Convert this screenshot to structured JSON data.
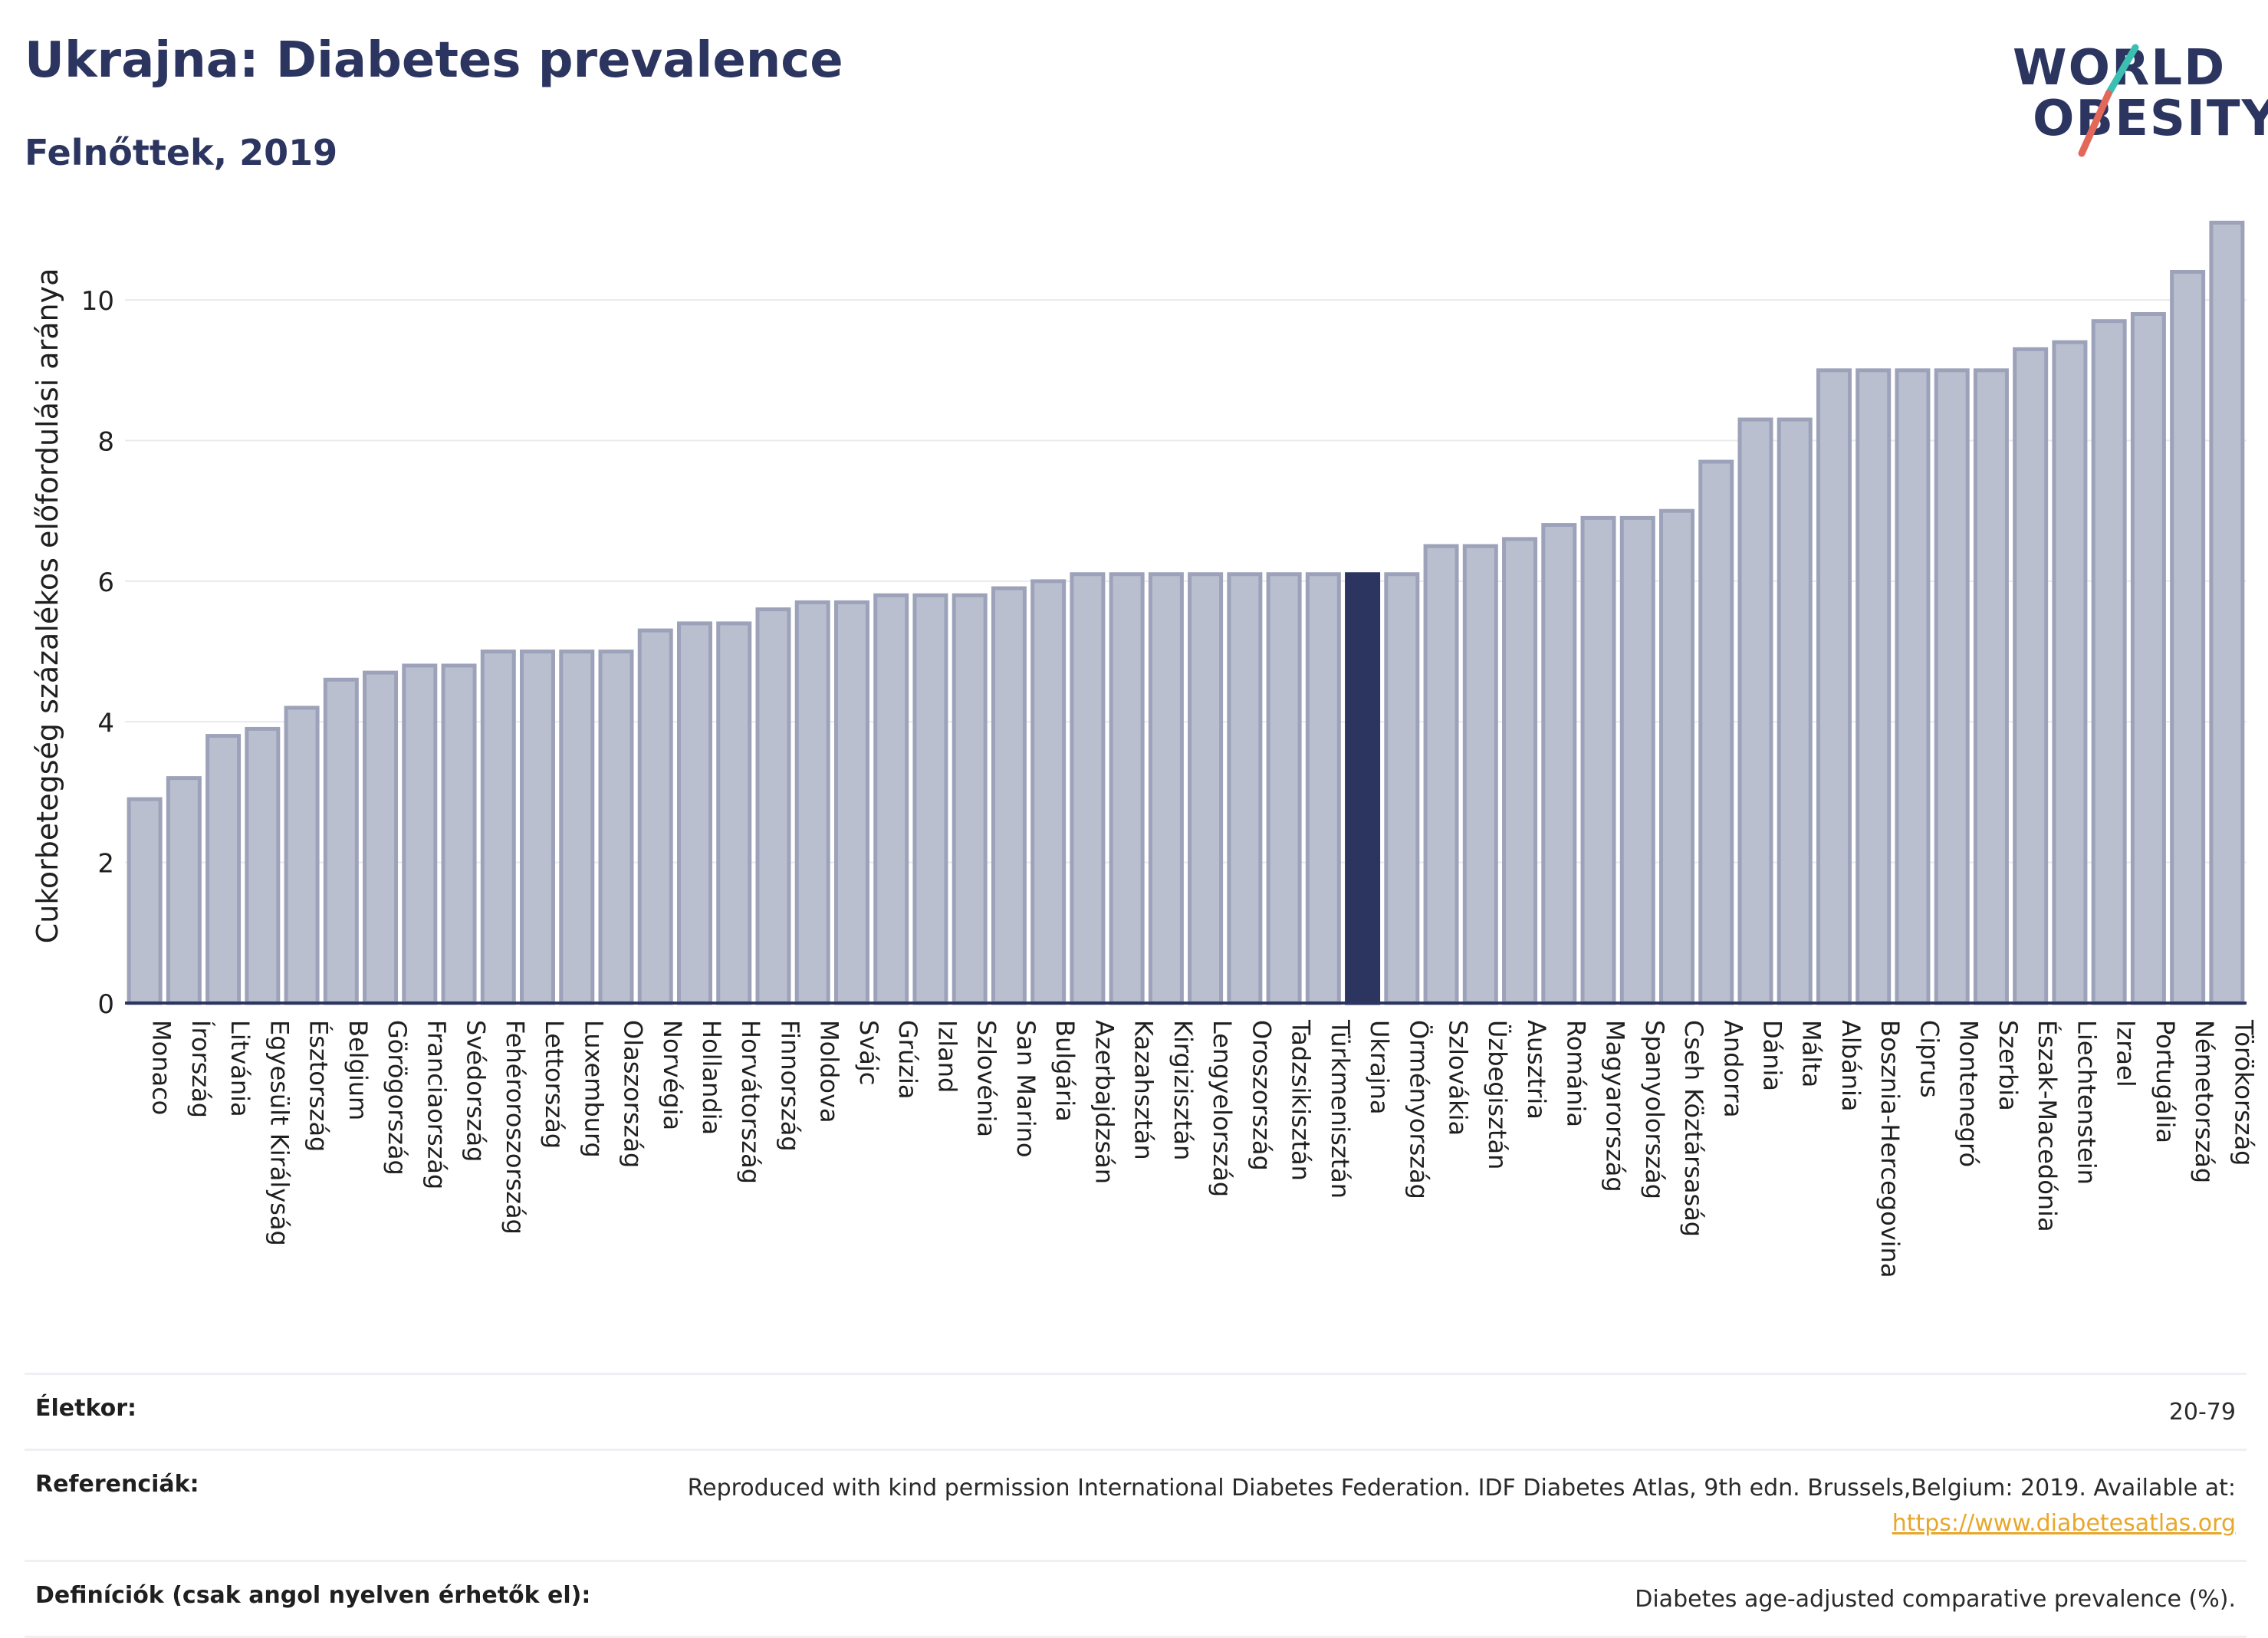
{
  "header": {
    "title": "Ukrajna: Diabetes prevalence",
    "subtitle": "Felnőttek, 2019",
    "logo": {
      "line1": "WORLD",
      "line2": "OBESITY"
    }
  },
  "colors": {
    "bar_default": "#babfcf",
    "bar_border": "#9ca2b9",
    "bar_highlight": "#2b3560",
    "title": "#2b3560",
    "logo_teal": "#3cbfb3",
    "logo_coral": "#e4685a",
    "link": "#e8a72a"
  },
  "chart_data": {
    "type": "bar",
    "title": "Ukrajna: Diabetes prevalence",
    "subtitle": "Felnőttek, 2019",
    "xlabel": "",
    "ylabel": "Cukorbetegség százalékos előfordulási aránya",
    "ylim": [
      0,
      11.3
    ],
    "yticks": [
      0,
      2,
      4,
      6,
      8,
      10
    ],
    "grid": true,
    "highlight": "Ukrajna",
    "categories": [
      "Monaco",
      "Írország",
      "Litvánia",
      "Egyesült Királyság",
      "Észtország",
      "Belgium",
      "Görögország",
      "Franciaország",
      "Svédország",
      "Fehéroroszország",
      "Lettország",
      "Luxemburg",
      "Olaszország",
      "Norvégia",
      "Hollandia",
      "Horvátország",
      "Finnország",
      "Moldova",
      "Svájc",
      "Grúzia",
      "Izland",
      "Szlovénia",
      "San Marino",
      "Bulgária",
      "Azerbajdzsán",
      "Kazahsztán",
      "Kirgizisztán",
      "Lengyelország",
      "Oroszország",
      "Tadzsikisztán",
      "Türkmenisztán",
      "Ukrajna",
      "Örményország",
      "Szlovákia",
      "Üzbegisztán",
      "Ausztria",
      "Románia",
      "Magyarország",
      "Spanyolország",
      "Cseh Köztársaság",
      "Andorra",
      "Dánia",
      "Málta",
      "Albánia",
      "Bosznia-Hercegovina",
      "Ciprus",
      "Montenegró",
      "Szerbia",
      "Észak-Macedónia",
      "Liechtenstein",
      "Izrael",
      "Portugália",
      "Németország",
      "Törökország"
    ],
    "values": [
      2.9,
      3.2,
      3.8,
      3.9,
      4.2,
      4.6,
      4.7,
      4.8,
      4.8,
      5.0,
      5.0,
      5.0,
      5.0,
      5.3,
      5.4,
      5.4,
      5.6,
      5.7,
      5.7,
      5.8,
      5.8,
      5.8,
      5.9,
      6.0,
      6.1,
      6.1,
      6.1,
      6.1,
      6.1,
      6.1,
      6.1,
      6.1,
      6.1,
      6.5,
      6.5,
      6.6,
      6.8,
      6.9,
      6.9,
      7.0,
      7.7,
      8.3,
      8.3,
      9.0,
      9.0,
      9.0,
      9.0,
      9.0,
      9.3,
      9.4,
      9.7,
      9.8,
      10.4,
      11.1
    ]
  },
  "footer": {
    "age_label": "Életkor:",
    "age_value": "20-79",
    "ref_label": "Referenciák:",
    "ref_text": "Reproduced with kind permission International Diabetes Federation. IDF Diabetes Atlas, 9th edn. Brussels,Belgium: 2019. Available at:",
    "ref_link": "https://www.diabetesatlas.org",
    "def_label": "Definíciók (csak angol nyelven érhetők el):",
    "def_value": "Diabetes age-adjusted comparative prevalence (%)."
  }
}
